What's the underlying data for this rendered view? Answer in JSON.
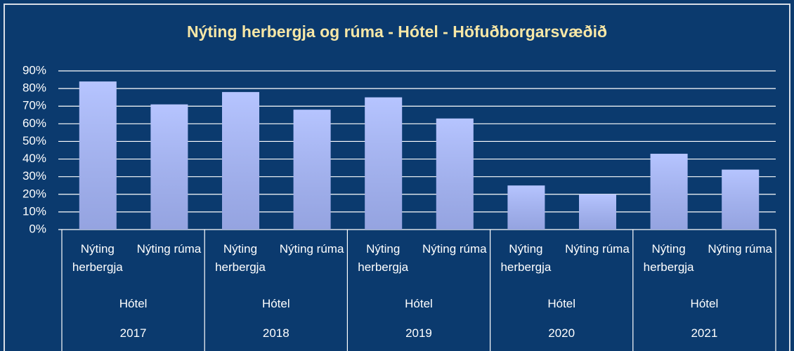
{
  "chart_data": {
    "type": "bar",
    "title": "Nýting herbergja og rúma - Hótel - Höfuðborgarsvæðið",
    "categories": [
      "Nýting herbergja",
      "Nýting rúma",
      "Nýting herbergja",
      "Nýting rúma",
      "Nýting herbergja",
      "Nýting rúma",
      "Nýting herbergja",
      "Nýting rúma",
      "Nýting herbergja",
      "Nýting rúma"
    ],
    "group_labels": [
      "Hótel",
      "Hótel",
      "Hótel",
      "Hótel",
      "Hótel"
    ],
    "years": [
      "2017",
      "2018",
      "2019",
      "2020",
      "2021"
    ],
    "values": [
      84,
      71,
      78,
      68,
      75,
      63,
      25,
      20,
      43,
      34
    ],
    "color": "#a9baff",
    "ylim": [
      0,
      90
    ],
    "yticks": [
      {
        "value": 0,
        "label": "0%"
      },
      {
        "value": 10,
        "label": "10%"
      },
      {
        "value": 20,
        "label": "20%"
      },
      {
        "value": 30,
        "label": "30%"
      },
      {
        "value": 40,
        "label": "40%"
      },
      {
        "value": 50,
        "label": "50%"
      },
      {
        "value": 60,
        "label": "60%"
      },
      {
        "value": 70,
        "label": "70%"
      },
      {
        "value": 80,
        "label": "80%"
      },
      {
        "value": 90,
        "label": "90%"
      }
    ],
    "grid": true
  }
}
